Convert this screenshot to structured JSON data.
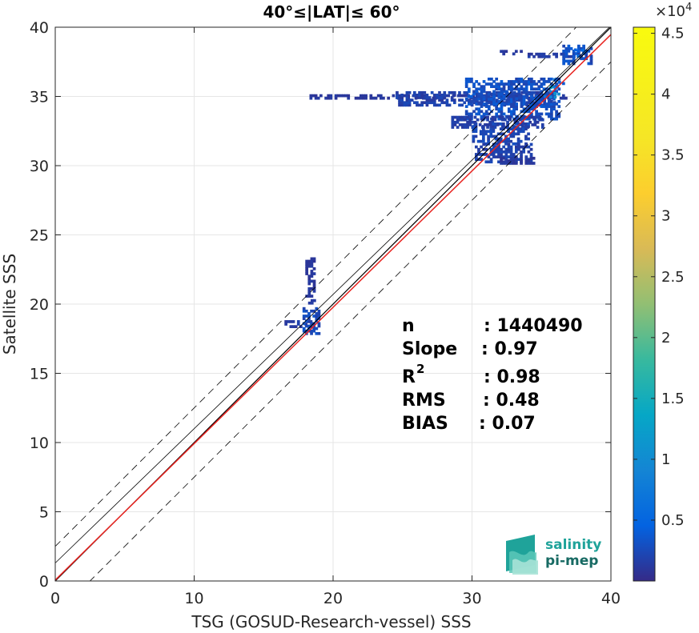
{
  "chart_data": {
    "type": "heatmap",
    "title": "40°≤|LAT|≤ 60°",
    "xlabel": "TSG (GOSUD-Research-vessel) SSS",
    "ylabel": "Satellite SSS",
    "xlim": [
      0,
      40
    ],
    "ylim": [
      0,
      40
    ],
    "xticks": [
      "0",
      "10",
      "20",
      "30",
      "40"
    ],
    "yticks": [
      "0",
      "5",
      "10",
      "15",
      "20",
      "25",
      "30",
      "35",
      "40"
    ],
    "grid": true,
    "colorbar": {
      "range": [
        0,
        45500
      ],
      "exponent_label": "×10",
      "exponent_power": "4",
      "ticks": [
        "0.5",
        "1",
        "1.5",
        "2",
        "2.5",
        "3",
        "3.5",
        "4",
        "4.5"
      ],
      "tick_values": [
        0.5,
        1,
        1.5,
        2,
        2.5,
        3,
        3.5,
        4,
        4.5
      ],
      "colormap": "parula"
    },
    "lines": {
      "one_to_one": {
        "color": "#000000",
        "style": "solid"
      },
      "offset_upper": {
        "intercept": 2.5,
        "color": "#000000",
        "style": "dashed"
      },
      "offset_lower": {
        "intercept": -2.5,
        "color": "#000000",
        "style": "dashed"
      },
      "regression": {
        "slope": 0.97,
        "intercept": 1.3,
        "color": "#000000",
        "style": "solid"
      },
      "fit": {
        "slope": 0.985,
        "intercept": 0.07,
        "color": "#e8231f",
        "style": "solid"
      }
    },
    "density_regions": [
      {
        "x": [
          32,
          33.5
        ],
        "y": [
          38,
          38.2
        ],
        "level": 0.03
      },
      {
        "x": [
          34,
          37.5
        ],
        "y": [
          37.8,
          38.1
        ],
        "level": 0.04
      },
      {
        "x": [
          36.5,
          38.6
        ],
        "y": [
          37.3,
          38.6
        ],
        "level": 0.08
      },
      {
        "x": [
          18.3,
          36.8
        ],
        "y": [
          34.8,
          35.0
        ],
        "level": 0.03
      },
      {
        "x": [
          24.5,
          36
        ],
        "y": [
          34.3,
          35.3
        ],
        "level": 0.05
      },
      {
        "x": [
          29.5,
          36.2
        ],
        "y": [
          33.3,
          36.2
        ],
        "level": 0.08
      },
      {
        "x": [
          28.5,
          35
        ],
        "y": [
          32.7,
          33.5
        ],
        "level": 0.04
      },
      {
        "x": [
          30,
          34
        ],
        "y": [
          31.5,
          33
        ],
        "level": 0.06
      },
      {
        "x": [
          30.2,
          34.2
        ],
        "y": [
          30.2,
          31.5
        ],
        "level": 0.05
      },
      {
        "x": [
          32,
          34.5
        ],
        "y": [
          30.1,
          30.6
        ],
        "level": 0.03
      },
      {
        "x": [
          18,
          18.7
        ],
        "y": [
          20.5,
          23.2
        ],
        "level": 0.03
      },
      {
        "x": [
          18.2,
          18.6
        ],
        "y": [
          20.0,
          20.5
        ],
        "level": 0.03
      },
      {
        "x": [
          16.5,
          18.3
        ],
        "y": [
          18.3,
          18.7
        ],
        "level": 0.04
      },
      {
        "x": [
          17.8,
          19
        ],
        "y": [
          17.8,
          19.6
        ],
        "level": 0.07
      }
    ],
    "hotspots": [
      {
        "x": 35.8,
        "y": 35.4,
        "level": 0.35
      },
      {
        "x": 35.5,
        "y": 35.2,
        "level": 0.25
      },
      {
        "x": 36.2,
        "y": 35.9,
        "level": 0.18
      },
      {
        "x": 37.7,
        "y": 37.9,
        "level": 0.14
      }
    ]
  },
  "stats": {
    "n_label": "n",
    "n_value": ": 1440490",
    "slope_label": "Slope",
    "slope_value": ": 0.97",
    "r2_label": "R",
    "r2_sup": "2",
    "r2_value": ": 0.98",
    "rms_label": "RMS",
    "rms_value": ": 0.48",
    "bias_label": "BIAS",
    "bias_value": ": 0.07"
  },
  "logo": {
    "line1": "salinity",
    "line2": "pi-mep",
    "color_primary": "#1fa39a",
    "color_secondary": "#176a63"
  }
}
